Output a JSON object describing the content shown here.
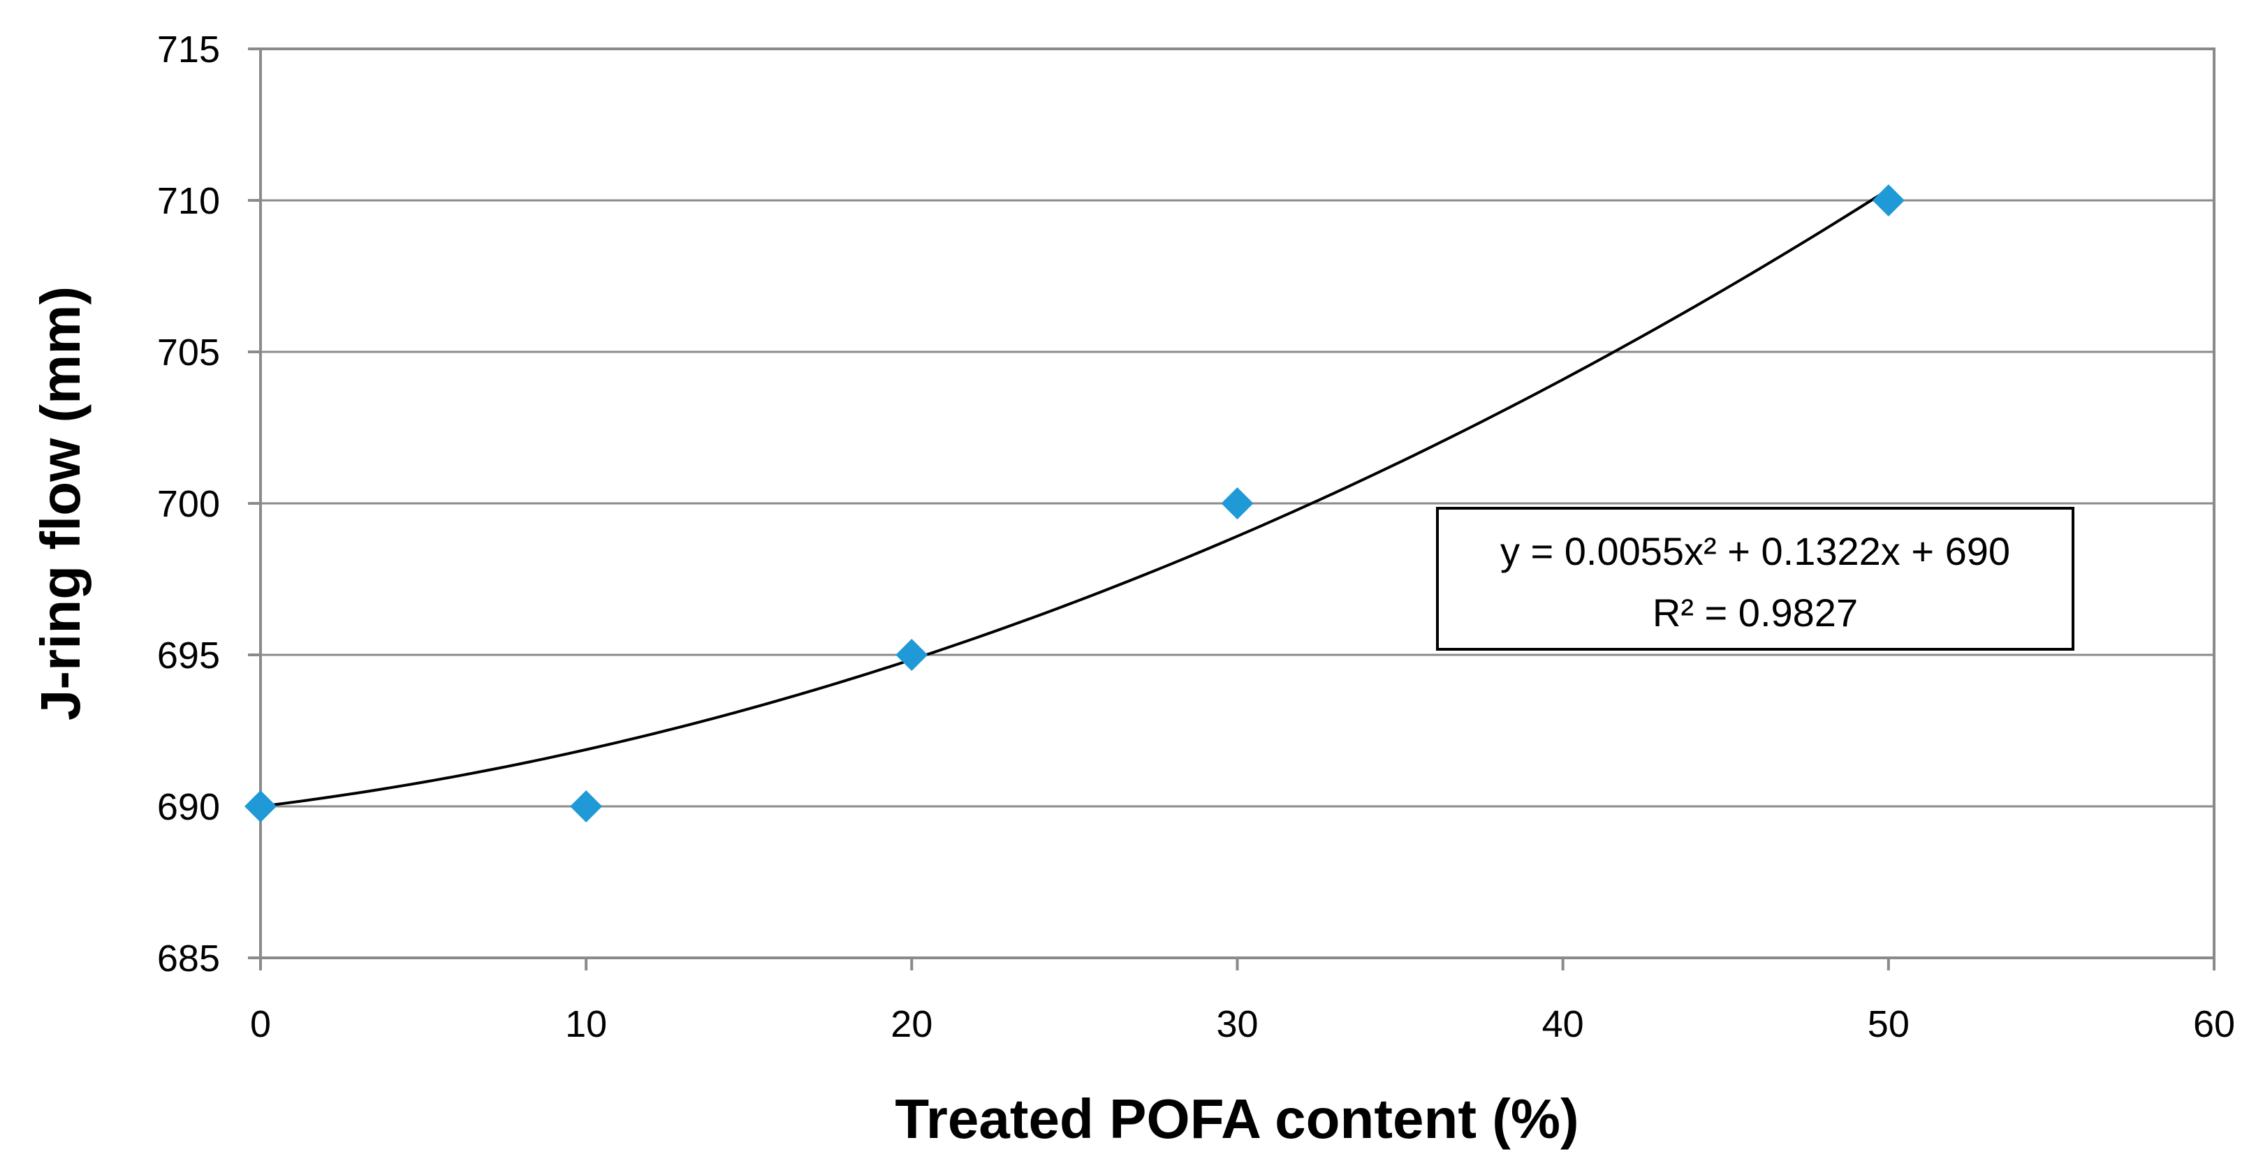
{
  "chart_data": {
    "type": "scatter",
    "title": "",
    "xlabel": "Treated POFA content (%)",
    "ylabel": "J-ring flow (mm)",
    "xlim": [
      0,
      60
    ],
    "ylim": [
      685,
      715
    ],
    "xticks": [
      0,
      10,
      20,
      30,
      40,
      50,
      60
    ],
    "yticks": [
      685,
      690,
      695,
      700,
      705,
      710,
      715
    ],
    "grid": "horizontal",
    "series": [
      {
        "name": "J-ring flow",
        "x": [
          0,
          10,
          20,
          30,
          50
        ],
        "y": [
          690,
          690,
          695,
          700,
          710
        ],
        "marker": "diamond",
        "color": "#1f9ad6"
      }
    ],
    "trendline": {
      "type": "polynomial",
      "order": 2,
      "coefficients": [
        0.0055,
        0.1322,
        690
      ],
      "x_range": [
        0,
        50
      ],
      "color": "#000000"
    },
    "annotation": {
      "equation": "y = 0.0055x² + 0.1322x + 690",
      "r_squared": "R² = 0.9827"
    }
  }
}
